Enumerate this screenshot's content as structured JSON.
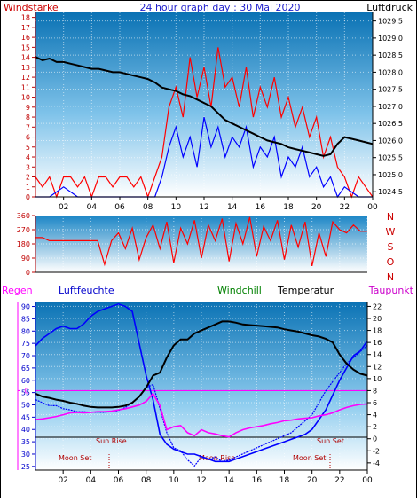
{
  "header": {
    "left_label": "Windstärke",
    "title": "24 hour graph day : 30 Mai 2020",
    "right_label": "Luftdruck"
  },
  "direction_labels": [
    "N",
    "W",
    "S",
    "O",
    "N"
  ],
  "lower_header": {
    "rain": "Regen",
    "humidity": "Luftfeuchte",
    "windchill": "Windchill",
    "temperature": "Temperatur",
    "dewpoint": "Taupunkt"
  },
  "events": {
    "sun_rise": "Sun Rise",
    "sun_set": "Sun Set",
    "moon_set_1": "Moon Set",
    "moon_rise": "Moon Rise",
    "moon_set_2": "Moon Set"
  },
  "colors": {
    "wind": "#ff0000",
    "gust": "#0000ff",
    "pressure": "#000000",
    "humidity": "#0000ff",
    "temperature": "#000000",
    "dewpoint": "#ff00ff",
    "event_line": "#000000",
    "event_text": "#b00000",
    "rain_axis": "#ff00ff"
  },
  "chart_data": [
    {
      "type": "line",
      "panel": "wind-pressure",
      "x_unit": "hour",
      "x_ticks": [
        "02",
        "04",
        "06",
        "08",
        "10",
        "12",
        "14",
        "16",
        "18",
        "20",
        "22",
        "00"
      ],
      "xlim": [
        0,
        24
      ],
      "left_axis": {
        "label": "Windstärke",
        "ticks": [
          0,
          1,
          2,
          3,
          4,
          5,
          6,
          7,
          8,
          9,
          10,
          11,
          12,
          13,
          14,
          15,
          16,
          17,
          18
        ],
        "ylim": [
          0,
          18.5
        ]
      },
      "right_axis": {
        "label": "Luftdruck",
        "ticks": [
          1024.5,
          1025,
          1025.5,
          1026,
          1026.5,
          1027,
          1027.5,
          1028,
          1028.5,
          1029,
          1029.5
        ],
        "ylim": [
          1024.35,
          1029.75
        ]
      },
      "series": [
        {
          "axis": "left",
          "x": [
            0,
            0.5,
            1,
            1.5,
            2,
            2.5,
            3,
            3.5,
            4,
            4.5,
            5,
            5.5,
            6,
            6.5,
            7,
            7.5,
            8,
            8.5,
            9,
            9.5,
            10,
            10.5,
            11,
            11.5,
            12,
            12.5,
            13,
            13.5,
            14,
            14.5,
            15,
            15.5,
            16,
            16.5,
            17,
            17.5,
            18,
            18.5,
            19,
            19.5,
            20,
            20.5,
            21,
            21.5,
            22,
            22.5,
            23,
            23.5,
            24
          ],
          "values": [
            2,
            1,
            2,
            0,
            2,
            2,
            1,
            2,
            0,
            2,
            2,
            1,
            2,
            2,
            1,
            2,
            0,
            2,
            4,
            9,
            11,
            8,
            14,
            10,
            13,
            9,
            15,
            11,
            12,
            9,
            13,
            8,
            11,
            9,
            12,
            8,
            10,
            7,
            9,
            6,
            8,
            4,
            6,
            3,
            2,
            0,
            2,
            1,
            0
          ]
        },
        {
          "axis": "left",
          "x": [
            0,
            1,
            2,
            3,
            4,
            5,
            6,
            7,
            8,
            8.5,
            9,
            9.5,
            10,
            10.5,
            11,
            11.5,
            12,
            12.5,
            13,
            13.5,
            14,
            14.5,
            15,
            15.5,
            16,
            16.5,
            17,
            17.5,
            18,
            18.5,
            19,
            19.5,
            20,
            20.5,
            21,
            21.5,
            22,
            23,
            24
          ],
          "values": [
            0,
            0,
            1,
            0,
            0,
            0,
            0,
            0,
            0,
            0,
            2,
            5,
            7,
            4,
            6,
            3,
            8,
            5,
            7,
            4,
            6,
            5,
            7,
            3,
            5,
            4,
            6,
            2,
            4,
            3,
            5,
            2,
            3,
            1,
            2,
            0,
            1,
            0,
            0
          ]
        },
        {
          "axis": "right",
          "x": [
            0,
            0.5,
            1,
            1.5,
            2,
            2.5,
            3,
            3.5,
            4,
            4.5,
            5,
            5.5,
            6,
            6.5,
            7,
            7.5,
            8,
            8.5,
            9,
            9.5,
            10,
            10.5,
            11,
            11.5,
            12,
            12.5,
            13,
            13.5,
            14,
            14.5,
            15,
            15.5,
            16,
            16.5,
            17,
            17.5,
            18,
            18.5,
            19,
            19.5,
            20,
            20.5,
            21,
            21.5,
            22,
            22.5,
            23,
            23.5,
            24
          ],
          "values": [
            1028.45,
            1028.35,
            1028.4,
            1028.3,
            1028.3,
            1028.25,
            1028.2,
            1028.15,
            1028.1,
            1028.1,
            1028.05,
            1028.0,
            1028.0,
            1027.95,
            1027.9,
            1027.85,
            1027.8,
            1027.7,
            1027.55,
            1027.5,
            1027.45,
            1027.35,
            1027.3,
            1027.2,
            1027.1,
            1027.0,
            1026.8,
            1026.6,
            1026.5,
            1026.4,
            1026.3,
            1026.2,
            1026.1,
            1026.0,
            1025.95,
            1025.9,
            1025.8,
            1025.75,
            1025.7,
            1025.65,
            1025.6,
            1025.55,
            1025.6,
            1025.9,
            1026.1,
            1026.05,
            1026.0,
            1025.95,
            1025.9
          ]
        }
      ]
    },
    {
      "type": "line",
      "panel": "wind-direction",
      "xlim": [
        0,
        24
      ],
      "left_axis": {
        "ticks": [
          0,
          90,
          180,
          270,
          360
        ],
        "ylim": [
          0,
          360
        ]
      },
      "series": [
        {
          "x": [
            0,
            0.5,
            1,
            1.5,
            2,
            2.5,
            3,
            3.5,
            4,
            4.5,
            5,
            5.5,
            6,
            6.5,
            7,
            7.5,
            8,
            8.5,
            9,
            9.5,
            10,
            10.5,
            11,
            11.5,
            12,
            12.5,
            13,
            13.5,
            14,
            14.5,
            15,
            15.5,
            16,
            16.5,
            17,
            17.5,
            18,
            18.5,
            19,
            19.5,
            20,
            20.5,
            21,
            21.5,
            22,
            22.5,
            23,
            23.5,
            24
          ],
          "values": [
            220,
            220,
            200,
            200,
            200,
            200,
            200,
            200,
            200,
            200,
            50,
            200,
            250,
            150,
            280,
            80,
            220,
            300,
            150,
            320,
            60,
            280,
            180,
            330,
            90,
            300,
            200,
            340,
            70,
            310,
            180,
            350,
            100,
            290,
            200,
            330,
            80,
            300,
            160,
            320,
            40,
            250,
            100,
            320,
            270,
            250,
            300,
            260,
            260
          ]
        }
      ]
    },
    {
      "type": "line",
      "panel": "temperature-humidity",
      "xlim": [
        0,
        24
      ],
      "left_axis": {
        "label": "Luftfeuchte",
        "ticks": [
          25,
          30,
          35,
          40,
          45,
          50,
          55,
          60,
          65,
          70,
          75,
          80,
          85,
          90
        ],
        "ylim": [
          23.5,
          92
        ]
      },
      "right_axis": {
        "ticks": [
          -4,
          -2,
          0,
          2,
          4,
          6,
          8,
          10,
          12,
          14,
          16,
          18,
          20,
          22
        ],
        "ylim": [
          -5.2,
          22.8
        ]
      },
      "series": [
        {
          "name": "Luftfeuchte",
          "axis": "left",
          "x": [
            0,
            0.5,
            1,
            1.5,
            2,
            2.5,
            3,
            3.5,
            4,
            4.5,
            5,
            5.5,
            6,
            6.5,
            7,
            7.5,
            8,
            8.5,
            9,
            9.5,
            10,
            10.5,
            11,
            11.5,
            12,
            12.5,
            13,
            13.5,
            14,
            14.5,
            15,
            15.5,
            16,
            16.5,
            17,
            17.5,
            18,
            18.5,
            19,
            19.5,
            20,
            20.5,
            21,
            21.5,
            22,
            22.5,
            23,
            23.5,
            24
          ],
          "values": [
            74,
            77,
            79,
            81,
            82,
            81,
            81,
            83,
            86,
            88,
            89,
            90,
            91,
            90,
            88,
            75,
            62,
            52,
            38,
            34,
            32,
            31,
            30,
            30,
            29,
            28,
            27,
            27,
            27,
            28,
            29,
            30,
            31,
            32,
            33,
            34,
            35,
            36,
            37,
            38,
            40,
            44,
            48,
            54,
            60,
            65,
            70,
            72,
            76
          ]
        },
        {
          "name": "Temperatur",
          "axis": "right",
          "x": [
            0,
            0.5,
            1,
            1.5,
            2,
            2.5,
            3,
            3.5,
            4,
            4.5,
            5,
            5.5,
            6,
            6.5,
            7,
            7.5,
            8,
            8.5,
            9,
            9.5,
            10,
            10.5,
            11,
            11.5,
            12,
            12.5,
            13,
            13.5,
            14,
            14.5,
            15,
            15.5,
            16,
            16.5,
            17,
            17.5,
            18,
            18.5,
            19,
            19.5,
            20,
            20.5,
            21,
            21.5,
            22,
            22.5,
            23,
            23.5,
            24
          ],
          "values": [
            7.5,
            7.0,
            6.8,
            6.5,
            6.3,
            6.0,
            5.8,
            5.5,
            5.3,
            5.2,
            5.2,
            5.2,
            5.3,
            5.5,
            6.0,
            7.0,
            8.5,
            10.5,
            11.0,
            13.5,
            15.5,
            16.5,
            16.5,
            17.5,
            18.0,
            18.5,
            19.0,
            19.5,
            19.5,
            19.3,
            19.0,
            18.9,
            18.8,
            18.7,
            18.6,
            18.5,
            18.2,
            18.0,
            17.8,
            17.5,
            17.2,
            17.0,
            16.6,
            16.0,
            14.0,
            12.5,
            11.5,
            10.8,
            10.5
          ]
        },
        {
          "name": "Taupunkt",
          "axis": "right",
          "x": [
            0,
            0.5,
            1,
            1.5,
            2,
            2.5,
            3,
            3.5,
            4,
            4.5,
            5,
            5.5,
            6,
            6.5,
            7,
            7.5,
            8,
            8.5,
            9,
            9.5,
            10,
            10.5,
            11,
            11.5,
            12,
            12.5,
            13,
            13.5,
            14,
            14.5,
            15,
            15.5,
            16,
            16.5,
            17,
            17.5,
            18,
            18.5,
            19,
            19.5,
            20,
            20.5,
            21,
            21.5,
            22,
            22.5,
            23,
            23.5,
            24
          ],
          "values": [
            3.2,
            3.3,
            3.5,
            3.7,
            4.0,
            4.3,
            4.4,
            4.3,
            4.4,
            4.5,
            4.5,
            4.6,
            4.8,
            5.0,
            5.3,
            5.6,
            6.2,
            7.5,
            5.5,
            1.5,
            2.0,
            2.2,
            1.0,
            0.5,
            1.5,
            1.0,
            0.8,
            0.5,
            0.3,
            1.0,
            1.5,
            1.8,
            2.0,
            2.2,
            2.5,
            2.7,
            3.0,
            3.1,
            3.3,
            3.4,
            3.5,
            3.8,
            4.0,
            4.3,
            4.8,
            5.2,
            5.5,
            5.7,
            5.8
          ]
        },
        {
          "name": "Windchill",
          "axis": "right",
          "x": [
            0,
            0.5,
            1,
            1.5,
            2,
            2.5,
            3,
            3.5,
            4,
            4.5,
            5,
            5.5,
            6,
            6.5,
            7,
            7.5,
            8,
            8.5,
            9,
            9.5,
            10,
            10.5,
            11,
            11.5,
            12,
            12.5,
            13,
            13.5,
            14,
            14.5,
            15,
            15.5,
            16,
            16.5,
            17,
            17.5,
            18,
            18.5,
            19,
            19.5,
            20,
            20.5,
            21,
            21.5,
            22,
            22.5,
            23,
            23.5,
            24
          ],
          "values": [
            6.5,
            6.0,
            5.5,
            5.5,
            5.0,
            4.8,
            4.5,
            4.5,
            4.4,
            4.4,
            4.4,
            4.5,
            4.7,
            5.2,
            6.0,
            7.0,
            8.5,
            9.0,
            5.0,
            1.0,
            -1.5,
            -2.0,
            -3.5,
            -4.5,
            -3.0,
            -3.5,
            -3.0,
            -3.8,
            -3.5,
            -3.0,
            -2.5,
            -2.0,
            -1.5,
            -1.0,
            -0.5,
            0.0,
            0.5,
            1.0,
            2.0,
            3.0,
            4.0,
            6.0,
            8.0,
            9.5,
            11.0,
            12.5,
            13.5,
            14.5,
            15.5
          ]
        }
      ],
      "reference_lines": [
        {
          "axis": "right",
          "value": 8
        }
      ]
    }
  ]
}
